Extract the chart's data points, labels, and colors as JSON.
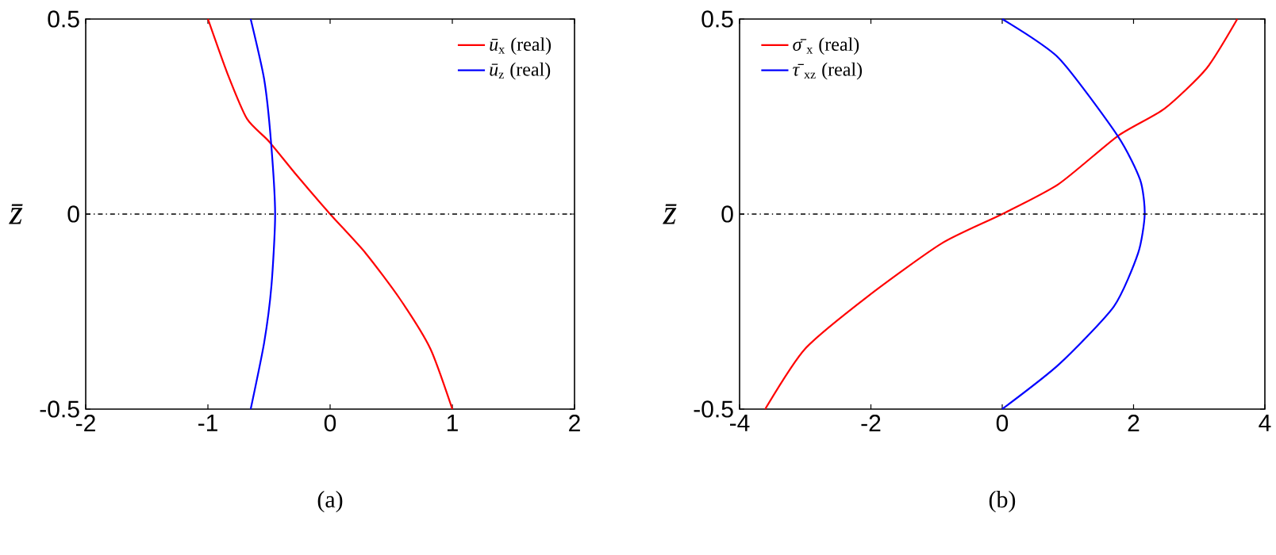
{
  "chart_data": [
    {
      "type": "line",
      "xlabel": null,
      "ylabel": "*z̄*",
      "annotations": [
        "(a)"
      ],
      "legend": "top right",
      "line_style": "solid",
      "xlim": [
        -2,
        2
      ],
      "ylim": [
        -0.5,
        0.5
      ],
      "xticks": [
        -2,
        -1,
        0,
        1,
        2
      ],
      "yticks": [
        -0.5,
        0,
        0.5
      ],
      "ref_lines": [
        {
          "axis": "y",
          "value": 0,
          "color": "#000000",
          "line_style": "dashdot"
        }
      ],
      "series": [
        {
          "name": "*ū*$_{x}$ (real)",
          "color": "#ff0000",
          "x": [
            -1.0,
            -0.84,
            -0.68,
            -0.5,
            -0.275,
            0,
            0.29,
            0.57,
            0.82,
            1.0
          ],
          "values": [
            0.5,
            0.36,
            0.244,
            0.186,
            0.1,
            0,
            -0.1,
            -0.217,
            -0.345,
            -0.5
          ]
        },
        {
          "name": "*ū*$_{z}$ (real)",
          "color": "#0000ff",
          "x": [
            -0.65,
            -0.54,
            -0.485,
            -0.45,
            -0.48,
            -0.54,
            -0.65
          ],
          "values": [
            0.5,
            0.346,
            0.19,
            0,
            -0.183,
            -0.33,
            -0.5
          ]
        }
      ]
    },
    {
      "type": "line",
      "ylabel": "*z̄*",
      "annotations": [
        "(b)"
      ],
      "legend": "top left",
      "line_style": "solid",
      "xlim": [
        -4,
        4
      ],
      "ylim": [
        -0.5,
        0.5
      ],
      "xticks": [
        -4,
        -2,
        0,
        2,
        4
      ],
      "yticks": [
        -0.5,
        0,
        0.5
      ],
      "ref_lines": [
        {
          "axis": "y",
          "value": 0,
          "color": "#000000",
          "line_style": "dashdot"
        }
      ],
      "series": [
        {
          "name": "*σ̄*$_{x}$  (real)",
          "color": "#ff0000",
          "x": [
            -3.61,
            -3.0,
            -2.04,
            -0.92,
            0,
            0.86,
            1.76,
            2.47,
            3.11,
            3.58
          ],
          "values": [
            -0.5,
            -0.345,
            -0.21,
            -0.075,
            0,
            0.077,
            0.2,
            0.27,
            0.373,
            0.5
          ]
        },
        {
          "name": "*τ̄*$_{xz}$ (real)",
          "color": "#0000ff",
          "x": [
            0,
            0.86,
            1.76,
            2.1,
            2.17,
            2.07,
            1.7,
            0.86,
            0
          ],
          "values": [
            0.5,
            0.4,
            0.2,
            0.088,
            0,
            -0.1,
            -0.237,
            -0.386,
            -0.5
          ]
        }
      ]
    }
  ]
}
